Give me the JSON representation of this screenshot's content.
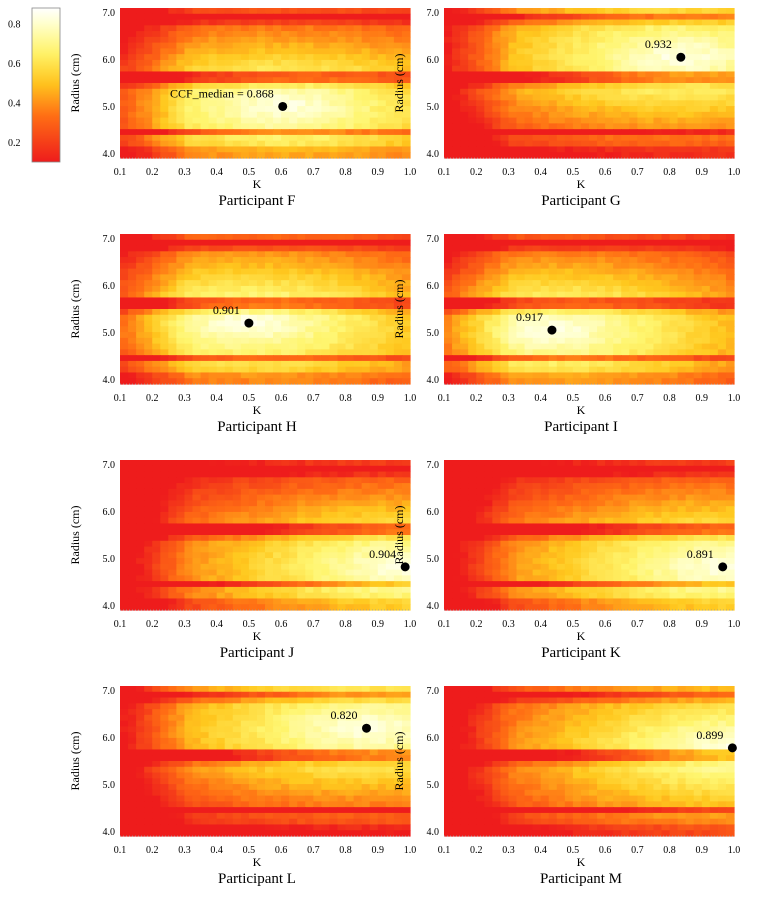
{
  "chart_data": {
    "type": "heatmap",
    "colorbar": {
      "ticks": [
        "0.8",
        "0.6",
        "0.4",
        "0.2"
      ],
      "tick_values": [
        0.8,
        0.6,
        0.4,
        0.2
      ],
      "range": [
        0.1,
        0.88
      ],
      "colors": [
        "#ee1c1c",
        "#ff7a00",
        "#ffd400",
        "#ffff99",
        "#ffffff"
      ]
    },
    "x_ticks": [
      "0.1",
      "0.2",
      "0.3",
      "0.4",
      "0.5",
      "0.6",
      "0.7",
      "0.8",
      "0.9",
      "1.0"
    ],
    "x_tick_values": [
      0.1,
      0.2,
      0.3,
      0.4,
      0.5,
      0.6,
      0.7,
      0.8,
      0.9,
      1.0
    ],
    "y_ticks": [
      "7.0",
      "6.0",
      "5.0",
      "4.0"
    ],
    "y_tick_values": [
      7.0,
      6.0,
      5.0,
      4.0
    ],
    "xlim": [
      0.1,
      1.0
    ],
    "ylim": [
      3.9,
      7.1
    ],
    "xlabel": "K",
    "ylabel": "Radius  (cm)",
    "panels": [
      {
        "title": "Participant  F",
        "best": {
          "k": 0.605,
          "r": 5.0,
          "label": "CCF_median  = 0.868"
        }
      },
      {
        "title": "Participant  G",
        "best": {
          "k": 0.835,
          "r": 6.05,
          "label": "0.932"
        }
      },
      {
        "title": "Participant  H",
        "best": {
          "k": 0.5,
          "r": 5.2,
          "label": "0.901"
        }
      },
      {
        "title": "Participant  I",
        "best": {
          "k": 0.435,
          "r": 5.05,
          "label": "0.917"
        }
      },
      {
        "title": "Participant  J",
        "best": {
          "k": 0.985,
          "r": 4.82,
          "label": "0.904"
        }
      },
      {
        "title": "Participant  K",
        "best": {
          "k": 0.965,
          "r": 4.82,
          "label": "0.891"
        }
      },
      {
        "title": "Participant  L",
        "best": {
          "k": 0.865,
          "r": 6.2,
          "label": "0.820"
        }
      },
      {
        "title": "Participant  M",
        "best": {
          "k": 0.995,
          "r": 5.78,
          "label": "0.899"
        }
      }
    ]
  }
}
